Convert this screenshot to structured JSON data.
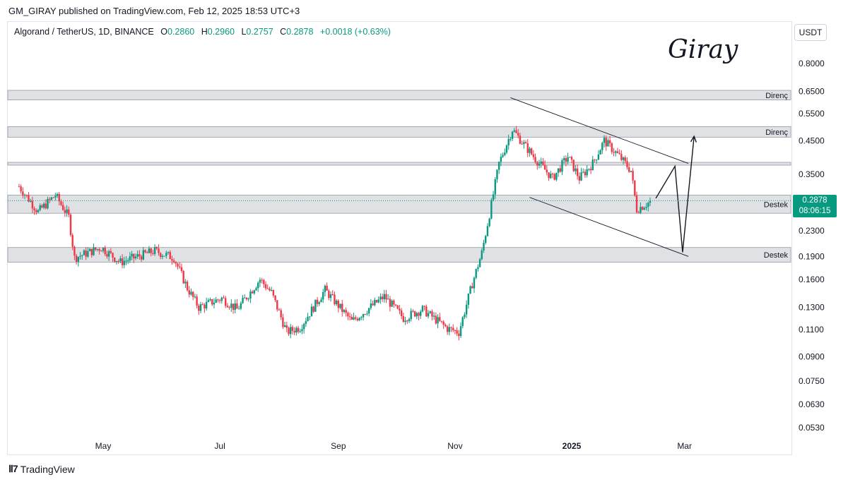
{
  "header": {
    "published": "GM_GIRAY published on TradingView.com, Feb 12, 2025 18:53 UTC+3"
  },
  "legend": {
    "symbol": "Algorand / TetherUS, 1D, BINANCE",
    "o_label": "O",
    "o_value": "0.2860",
    "h_label": "H",
    "h_value": "0.2960",
    "l_label": "L",
    "l_value": "0.2757",
    "c_label": "C",
    "c_value": "0.2878",
    "change": "+0.0018 (+0.63%)"
  },
  "currency": "USDT",
  "watermark": "Giray",
  "last_price": {
    "price": "0.2878",
    "countdown": "08:06:15"
  },
  "footer": {
    "brand": "TradingView"
  },
  "colors": {
    "up": "#089981",
    "down": "#f23645",
    "zone": "#dfe1e5",
    "line": "#131722"
  },
  "chart_data": {
    "type": "candlestick",
    "y_scale": "log",
    "y_ticks": [
      "0.8000",
      "0.6500",
      "0.5500",
      "0.4500",
      "0.3500",
      "0.2300",
      "0.1900",
      "0.1600",
      "0.1300",
      "0.1100",
      "0.0900",
      "0.0750",
      "0.0630",
      "0.0530"
    ],
    "x_ticks": [
      "May",
      "Jul",
      "Sep",
      "Nov",
      "2025",
      "Mar"
    ],
    "zones": [
      {
        "label": "Direnç",
        "low": 0.61,
        "high": 0.655
      },
      {
        "label": "Direnç",
        "low": 0.462,
        "high": 0.5
      },
      {
        "label": "",
        "low": 0.375,
        "high": 0.383
      },
      {
        "label": "Destek",
        "low": 0.262,
        "high": 0.3
      },
      {
        "label": "Destek",
        "low": 0.182,
        "high": 0.203
      }
    ],
    "channel": {
      "upper": [
        [
          "2024-11-30",
          0.62
        ],
        [
          "2025-03-03",
          0.38
        ]
      ],
      "lower": [
        [
          "2024-12-10",
          0.295
        ],
        [
          "2025-03-03",
          0.19
        ]
      ]
    },
    "projection": [
      [
        "2025-02-14",
        0.293
      ],
      [
        "2025-02-24",
        0.372
      ],
      [
        "2025-02-28",
        0.196
      ],
      [
        "2025-03-06",
        0.465
      ]
    ],
    "price_path": [
      [
        "2024-03-18",
        0.32
      ],
      [
        "2024-03-28",
        0.265
      ],
      [
        "2024-04-06",
        0.3
      ],
      [
        "2024-04-13",
        0.255
      ],
      [
        "2024-04-16",
        0.188
      ],
      [
        "2024-04-30",
        0.203
      ],
      [
        "2024-05-10",
        0.182
      ],
      [
        "2024-05-28",
        0.198
      ],
      [
        "2024-06-07",
        0.188
      ],
      [
        "2024-06-14",
        0.15
      ],
      [
        "2024-06-20",
        0.13
      ],
      [
        "2024-07-02",
        0.139
      ],
      [
        "2024-07-10",
        0.128
      ],
      [
        "2024-07-22",
        0.16
      ],
      [
        "2024-07-28",
        0.145
      ],
      [
        "2024-08-05",
        0.108
      ],
      [
        "2024-08-12",
        0.112
      ],
      [
        "2024-08-25",
        0.148
      ],
      [
        "2024-09-08",
        0.117
      ],
      [
        "2024-09-25",
        0.141
      ],
      [
        "2024-10-05",
        0.12
      ],
      [
        "2024-10-15",
        0.128
      ],
      [
        "2024-10-28",
        0.111
      ],
      [
        "2024-11-03",
        0.108
      ],
      [
        "2024-11-10",
        0.155
      ],
      [
        "2024-11-15",
        0.195
      ],
      [
        "2024-11-20",
        0.28
      ],
      [
        "2024-11-24",
        0.38
      ],
      [
        "2024-12-01",
        0.49
      ],
      [
        "2024-12-08",
        0.43
      ],
      [
        "2024-12-15",
        0.38
      ],
      [
        "2024-12-22",
        0.34
      ],
      [
        "2024-12-30",
        0.4
      ],
      [
        "2025-01-05",
        0.34
      ],
      [
        "2025-01-12",
        0.38
      ],
      [
        "2025-01-18",
        0.45
      ],
      [
        "2025-01-26",
        0.4
      ],
      [
        "2025-02-01",
        0.36
      ],
      [
        "2025-02-04",
        0.27
      ],
      [
        "2025-02-12",
        0.2878
      ]
    ]
  }
}
